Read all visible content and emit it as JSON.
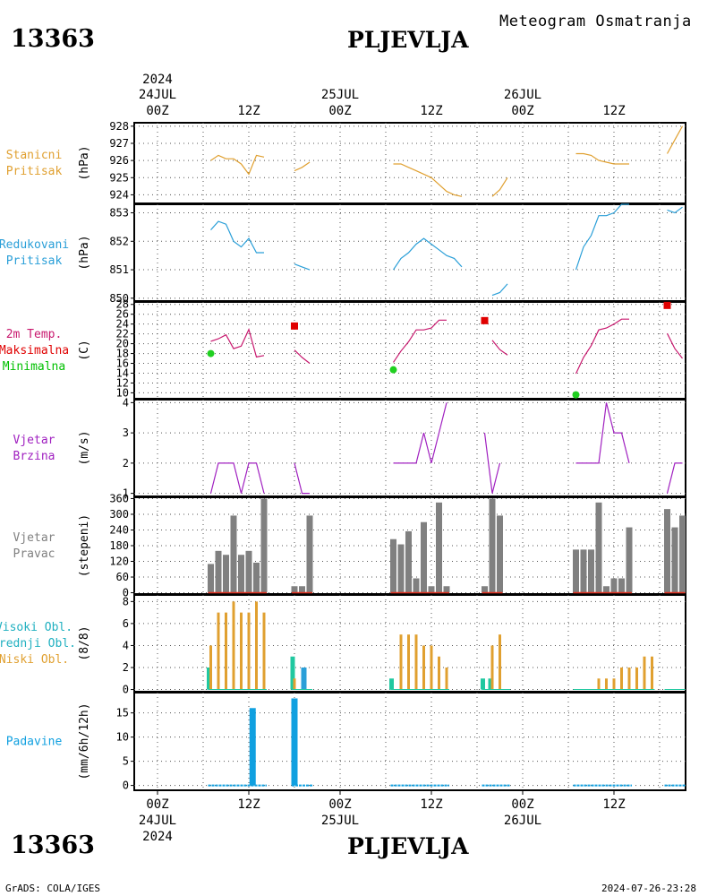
{
  "header": {
    "station_id": "13363",
    "station_name": "PLJEVLJA",
    "chart_title": "Meteogram Osmatranja"
  },
  "footer": {
    "station_id": "13363",
    "station_name": "PLJEVLJA",
    "credit": "GrADS: COLA/IGES",
    "timestamp": "2024-07-26-23:28"
  },
  "time_axis": {
    "year": "2024",
    "top_ticks": [
      "00Z",
      "12Z",
      "00Z",
      "12Z",
      "00Z",
      "12Z"
    ],
    "dates": [
      "24JUL",
      "25JUL",
      "26JUL"
    ],
    "bottom_ticks": [
      "00Z",
      "12Z",
      "00Z",
      "12Z",
      "00Z",
      "12Z"
    ]
  },
  "chart_data": [
    {
      "type": "line",
      "id": "station-pressure",
      "label_lines": [
        "Stanicni",
        "Pritisak"
      ],
      "unit": "(hPa)",
      "color": "#e0a030",
      "ylim": [
        923.5,
        928.2
      ],
      "yticks": [
        924,
        925,
        926,
        927,
        928
      ],
      "segments": [
        [
          [
            7,
            926.0
          ],
          [
            8,
            926.3
          ],
          [
            9,
            926.1
          ],
          [
            10,
            926.1
          ],
          [
            11,
            925.8
          ],
          [
            12,
            925.2
          ],
          [
            13,
            926.3
          ],
          [
            14,
            926.2
          ]
        ],
        [
          [
            18,
            925.4
          ],
          [
            19,
            925.6
          ],
          [
            20,
            925.9
          ]
        ],
        [
          [
            31,
            925.8
          ],
          [
            32,
            925.8
          ],
          [
            33,
            925.6
          ],
          [
            34,
            925.4
          ],
          [
            35,
            925.2
          ],
          [
            36,
            925.0
          ],
          [
            37,
            924.6
          ],
          [
            38,
            924.2
          ],
          [
            39,
            924.0
          ],
          [
            40,
            923.9
          ]
        ],
        [
          [
            44,
            923.9
          ],
          [
            45,
            924.3
          ],
          [
            46,
            925.0
          ]
        ],
        [
          [
            55,
            926.4
          ],
          [
            56,
            926.4
          ],
          [
            57,
            926.3
          ],
          [
            58,
            926.0
          ],
          [
            59,
            925.9
          ],
          [
            60,
            925.8
          ],
          [
            61,
            925.8
          ],
          [
            62,
            925.8
          ]
        ],
        [
          [
            67,
            926.4
          ],
          [
            68,
            927.2
          ],
          [
            69,
            928.0
          ]
        ]
      ]
    },
    {
      "type": "line",
      "id": "reduced-pressure",
      "label_lines": [
        "Redukovani",
        "Pritisak"
      ],
      "unit": "(hPa)",
      "color": "#2a9fd8",
      "ylim": [
        849.9,
        853.3
      ],
      "yticks": [
        850,
        851,
        852,
        853
      ],
      "segments": [
        [
          [
            7,
            852.4
          ],
          [
            8,
            852.7
          ],
          [
            9,
            852.6
          ],
          [
            10,
            852.0
          ],
          [
            11,
            851.8
          ],
          [
            12,
            852.1
          ],
          [
            13,
            851.6
          ],
          [
            14,
            851.6
          ]
        ],
        [
          [
            18,
            851.2
          ],
          [
            19,
            851.1
          ],
          [
            20,
            851.0
          ]
        ],
        [
          [
            31,
            851.0
          ],
          [
            32,
            851.4
          ],
          [
            33,
            851.6
          ],
          [
            34,
            851.9
          ],
          [
            35,
            852.1
          ],
          [
            36,
            851.9
          ],
          [
            37,
            851.7
          ],
          [
            38,
            851.5
          ],
          [
            39,
            851.4
          ],
          [
            40,
            851.1
          ]
        ],
        [
          [
            44,
            850.1
          ],
          [
            45,
            850.2
          ],
          [
            46,
            850.5
          ]
        ],
        [
          [
            55,
            851.0
          ],
          [
            56,
            851.8
          ],
          [
            57,
            852.2
          ],
          [
            58,
            852.9
          ],
          [
            59,
            852.9
          ],
          [
            60,
            853.0
          ],
          [
            61,
            853.3
          ],
          [
            62,
            853.3
          ]
        ],
        [
          [
            67,
            853.1
          ],
          [
            68,
            853.0
          ],
          [
            69,
            853.2
          ]
        ]
      ]
    },
    {
      "type": "line",
      "id": "temperature",
      "label_lines": [
        "2m Temp.",
        "Maksimalna",
        "Minimalna"
      ],
      "label_colors": [
        "#c8186e",
        "#e00000",
        "#00c000"
      ],
      "unit": "(C)",
      "color": "#c8186e",
      "max_color": "#e00000",
      "min_color": "#20d020",
      "ylim": [
        8.8,
        28.5
      ],
      "yticks": [
        10,
        12,
        14,
        16,
        18,
        20,
        22,
        24,
        26,
        28
      ],
      "segments": [
        [
          [
            7,
            20.5
          ],
          [
            8,
            21.0
          ],
          [
            9,
            21.8
          ],
          [
            10,
            19.0
          ],
          [
            11,
            19.5
          ],
          [
            12,
            22.9
          ],
          [
            13,
            17.3
          ],
          [
            14,
            17.6
          ]
        ],
        [
          [
            18,
            18.7
          ],
          [
            19,
            17.2
          ],
          [
            20,
            16.0
          ]
        ],
        [
          [
            31,
            16.2
          ],
          [
            32,
            18.5
          ],
          [
            33,
            20.4
          ],
          [
            34,
            22.8
          ],
          [
            35,
            22.8
          ],
          [
            36,
            23.2
          ],
          [
            37,
            24.8
          ],
          [
            38,
            24.8
          ]
        ],
        [
          [
            44,
            20.7
          ],
          [
            45,
            18.8
          ],
          [
            46,
            17.7
          ]
        ],
        [
          [
            55,
            13.9
          ],
          [
            56,
            17.2
          ],
          [
            57,
            19.6
          ],
          [
            58,
            22.8
          ],
          [
            59,
            23.2
          ],
          [
            60,
            24.0
          ],
          [
            61,
            25.0
          ],
          [
            62,
            25.0
          ]
        ],
        [
          [
            67,
            22.1
          ],
          [
            68,
            19.0
          ],
          [
            69,
            17.0
          ]
        ]
      ],
      "max_points": [
        [
          18,
          23.6
        ],
        [
          43,
          24.7
        ],
        [
          67,
          27.8
        ]
      ],
      "min_points": [
        [
          7,
          18.0
        ],
        [
          31,
          14.7
        ],
        [
          55,
          9.6
        ]
      ]
    },
    {
      "type": "line",
      "id": "wind-speed",
      "label_lines": [
        "Vjetar",
        "Brzina"
      ],
      "unit": "(m/s)",
      "color": "#a020c0",
      "ylim": [
        0.9,
        4.1
      ],
      "yticks": [
        1,
        2,
        3,
        4
      ],
      "segments": [
        [
          [
            7,
            1.0
          ],
          [
            8,
            2.0
          ],
          [
            9,
            2.0
          ],
          [
            10,
            2.0
          ],
          [
            11,
            1.0
          ],
          [
            12,
            2.0
          ],
          [
            13,
            2.0
          ],
          [
            14,
            1.0
          ]
        ],
        [
          [
            18,
            2.0
          ],
          [
            19,
            1.0
          ],
          [
            20,
            1.0
          ]
        ],
        [
          [
            31,
            2.0
          ],
          [
            32,
            2.0
          ],
          [
            33,
            2.0
          ],
          [
            34,
            2.0
          ],
          [
            35,
            3.0
          ],
          [
            36,
            2.0
          ],
          [
            37,
            3.0
          ],
          [
            38,
            4.0
          ]
        ],
        [
          [
            43,
            3.0
          ],
          [
            44,
            1.0
          ],
          [
            45,
            2.0
          ]
        ],
        [
          [
            55,
            2.0
          ],
          [
            56,
            2.0
          ],
          [
            57,
            2.0
          ],
          [
            58,
            2.0
          ],
          [
            59,
            4.0
          ],
          [
            60,
            3.0
          ],
          [
            61,
            3.0
          ],
          [
            62,
            2.0
          ]
        ],
        [
          [
            67,
            1.0
          ],
          [
            68,
            2.0
          ],
          [
            69,
            2.0
          ]
        ]
      ]
    },
    {
      "type": "bar",
      "id": "wind-direction",
      "label_lines": [
        "Vjetar",
        "Pravac"
      ],
      "unit": "(stepeni)",
      "color": "#808080",
      "baseline_color": "#e03020",
      "ylim": [
        -5,
        365
      ],
      "yticks": [
        0,
        60,
        120,
        180,
        240,
        300,
        360
      ],
      "bars": [
        [
          7,
          110
        ],
        [
          8,
          160
        ],
        [
          9,
          145
        ],
        [
          10,
          295
        ],
        [
          11,
          145
        ],
        [
          12,
          160
        ],
        [
          13,
          115
        ],
        [
          14,
          360
        ],
        [
          18,
          25
        ],
        [
          19,
          25
        ],
        [
          20,
          295
        ],
        [
          31,
          205
        ],
        [
          32,
          185
        ],
        [
          33,
          235
        ],
        [
          34,
          55
        ],
        [
          35,
          270
        ],
        [
          36,
          25
        ],
        [
          37,
          345
        ],
        [
          38,
          25
        ],
        [
          43,
          25
        ],
        [
          44,
          360
        ],
        [
          45,
          295
        ],
        [
          55,
          165
        ],
        [
          56,
          165
        ],
        [
          57,
          165
        ],
        [
          58,
          345
        ],
        [
          59,
          25
        ],
        [
          60,
          55
        ],
        [
          61,
          55
        ],
        [
          62,
          250
        ],
        [
          67,
          320
        ],
        [
          68,
          250
        ],
        [
          69,
          295
        ]
      ]
    },
    {
      "type": "bar",
      "id": "cloud-cover",
      "label_lines": [
        "Visoki Obl.",
        "Srednji Obl.",
        "Niski Obl."
      ],
      "label_colors": [
        "#20b0c0",
        "#20b0c0",
        "#e0a030"
      ],
      "unit": "(8/8)",
      "colors": {
        "visoki": "#2a9fd8",
        "srednji": "#20c8a0",
        "niski": "#e0a030"
      },
      "ylim": [
        -0.2,
        8.6
      ],
      "yticks": [
        0,
        2,
        4,
        6,
        8
      ],
      "series": [
        {
          "name": "Visoki Obl.",
          "points": [
            [
              19,
              2
            ]
          ]
        },
        {
          "name": "Srednji Obl.",
          "points": [
            [
              7,
              2
            ],
            [
              18,
              3
            ],
            [
              31,
              1
            ],
            [
              43,
              1
            ],
            [
              44,
              1
            ]
          ]
        },
        {
          "name": "Niski Obl.",
          "points": [
            [
              7,
              4
            ],
            [
              8,
              7
            ],
            [
              9,
              7
            ],
            [
              10,
              8
            ],
            [
              11,
              7
            ],
            [
              12,
              7
            ],
            [
              13,
              8
            ],
            [
              14,
              7
            ],
            [
              18,
              1
            ],
            [
              32,
              5
            ],
            [
              33,
              5
            ],
            [
              34,
              5
            ],
            [
              35,
              4
            ],
            [
              36,
              4
            ],
            [
              37,
              3
            ],
            [
              38,
              2
            ],
            [
              44,
              4
            ],
            [
              45,
              5
            ],
            [
              58,
              1
            ],
            [
              59,
              1
            ],
            [
              60,
              1
            ],
            [
              61,
              2
            ],
            [
              62,
              2
            ],
            [
              63,
              2
            ],
            [
              64,
              3
            ],
            [
              65,
              3
            ]
          ]
        }
      ]
    },
    {
      "type": "bar",
      "id": "precipitation",
      "label_lines": [
        "Padavine"
      ],
      "unit": "(mm/6h/12h)",
      "color": "#10a0e0",
      "ylim": [
        -1,
        19.2
      ],
      "yticks": [
        0,
        5,
        10,
        15
      ],
      "bars": [
        [
          12.5,
          16
        ],
        [
          18,
          18
        ]
      ],
      "zero_segments": [
        [
          7,
          14
        ],
        [
          18,
          20
        ],
        [
          31,
          38
        ],
        [
          43,
          46
        ],
        [
          55,
          62
        ],
        [
          67,
          69
        ]
      ]
    }
  ]
}
